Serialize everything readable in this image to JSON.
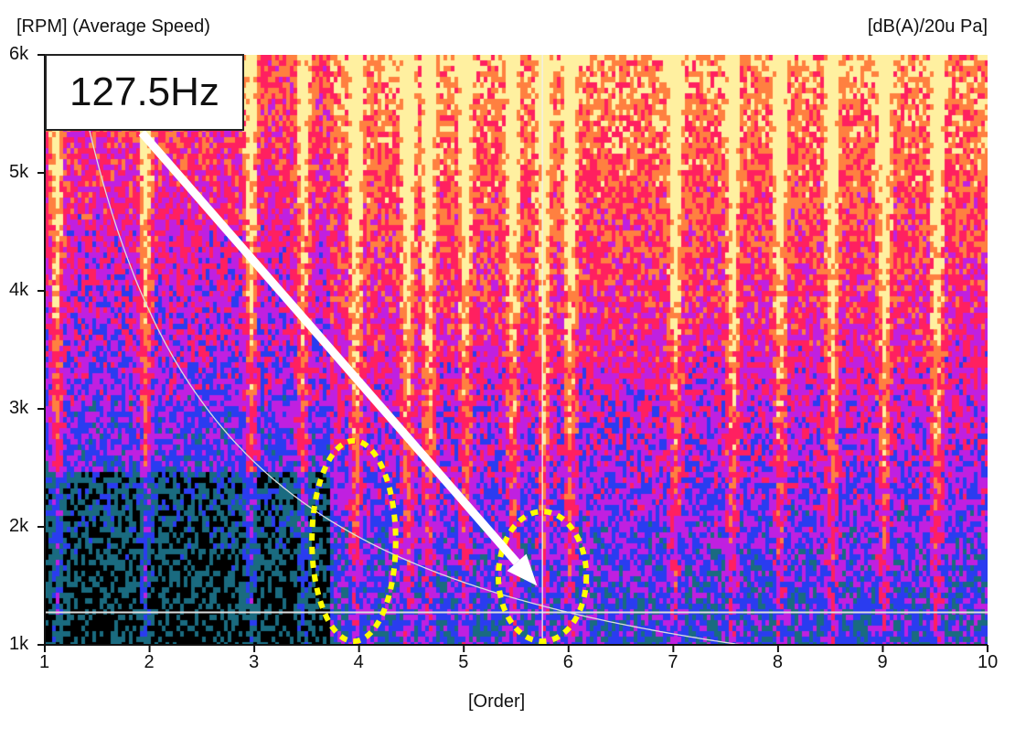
{
  "chart_data": {
    "type": "heatmap",
    "title": "",
    "ylabel": "[RPM] (Average Speed)",
    "xlabel": "[Order]",
    "colorbar_unit": "[dB(A)/20u Pa]",
    "xlim": [
      1,
      10
    ],
    "ylim": [
      1000,
      6000
    ],
    "x_ticks": [
      "1",
      "2",
      "3",
      "4",
      "5",
      "6",
      "7",
      "8",
      "9",
      "10"
    ],
    "y_ticks": [
      "1k",
      "2k",
      "3k",
      "4k",
      "5k",
      "6k"
    ],
    "colormap": [
      "#000000",
      "#1a6b80",
      "#2a3cf0",
      "#c020e0",
      "#ff2060",
      "#ff8040",
      "#fff0a0"
    ],
    "prominent_orders": [
      1.1,
      1.95,
      2.95,
      3.45,
      3.95,
      4.45,
      4.65,
      5.0,
      5.45,
      5.75,
      6.0,
      7.0,
      7.55,
      8.0,
      8.5,
      9.0,
      9.5
    ],
    "annotation": {
      "label": "127.5Hz",
      "constant_frequency_hz": 127.5,
      "horizontal_cursor_rpm": 1275,
      "vertical_cursor_order": 5.75,
      "arrow_target": {
        "order": 5.7,
        "rpm": 1500
      }
    },
    "highlights": [
      {
        "order": 3.95,
        "rpm": 1880,
        "order_halfwidth": 0.4,
        "rpm_halfheight": 850,
        "color": "#ffff00"
      },
      {
        "order": 5.75,
        "rpm": 1580,
        "order_halfwidth": 0.42,
        "rpm_halfheight": 550,
        "color": "#ffff00"
      }
    ]
  }
}
